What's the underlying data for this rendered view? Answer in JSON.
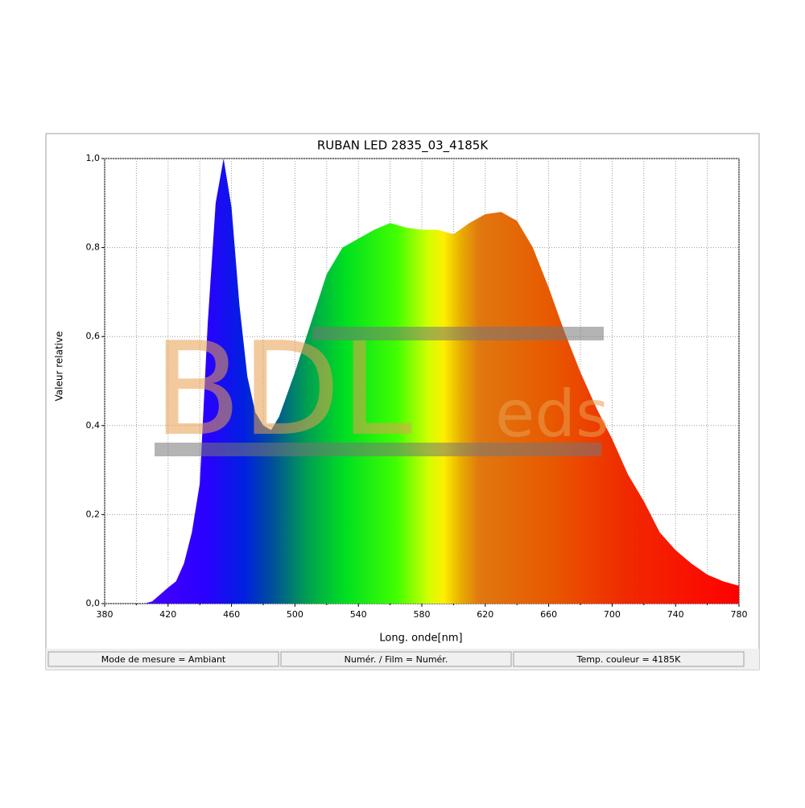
{
  "chart_data": {
    "type": "area",
    "title": "RUBAN LED 2835_03_4185K",
    "xlabel": "Long. onde[nm]",
    "ylabel": "Valeur relative",
    "watermark": [
      "BDL",
      "eds"
    ],
    "x": [
      405,
      410,
      420,
      425,
      430,
      435,
      440,
      445,
      450,
      455,
      460,
      465,
      470,
      475,
      480,
      485,
      490,
      500,
      510,
      520,
      530,
      540,
      550,
      560,
      570,
      580,
      590,
      600,
      610,
      620,
      630,
      640,
      650,
      660,
      670,
      680,
      690,
      700,
      710,
      720,
      730,
      740,
      750,
      760,
      770,
      780
    ],
    "values": [
      0,
      0.005,
      0.036,
      0.05,
      0.09,
      0.16,
      0.27,
      0.63,
      0.9,
      1.0,
      0.89,
      0.67,
      0.51,
      0.43,
      0.4,
      0.39,
      0.42,
      0.52,
      0.63,
      0.74,
      0.8,
      0.82,
      0.84,
      0.855,
      0.845,
      0.84,
      0.84,
      0.83,
      0.855,
      0.875,
      0.88,
      0.86,
      0.8,
      0.71,
      0.61,
      0.52,
      0.44,
      0.37,
      0.29,
      0.23,
      0.16,
      0.12,
      0.09,
      0.065,
      0.05,
      0.04
    ],
    "xlim": [
      380,
      780
    ],
    "xticks": [
      380,
      420,
      460,
      500,
      540,
      580,
      620,
      660,
      700,
      740,
      780
    ],
    "xminorticks": [
      400,
      440,
      480,
      520,
      560,
      600,
      640,
      680,
      720,
      760
    ],
    "ylim": [
      0,
      1
    ],
    "yticks": [
      {
        "value": 0,
        "label": "0,0"
      },
      {
        "value": 0.2,
        "label": "0,2"
      },
      {
        "value": 0.4,
        "label": "0,4"
      },
      {
        "value": 0.6,
        "label": "0,6"
      },
      {
        "value": 0.8,
        "label": "0,8"
      },
      {
        "value": 1,
        "label": "1,0"
      }
    ],
    "grid": true,
    "status": [
      "Mode de mesure = Ambiant",
      "Numér. / Film = Numér.",
      "Temp. couleur = 4185K"
    ]
  }
}
